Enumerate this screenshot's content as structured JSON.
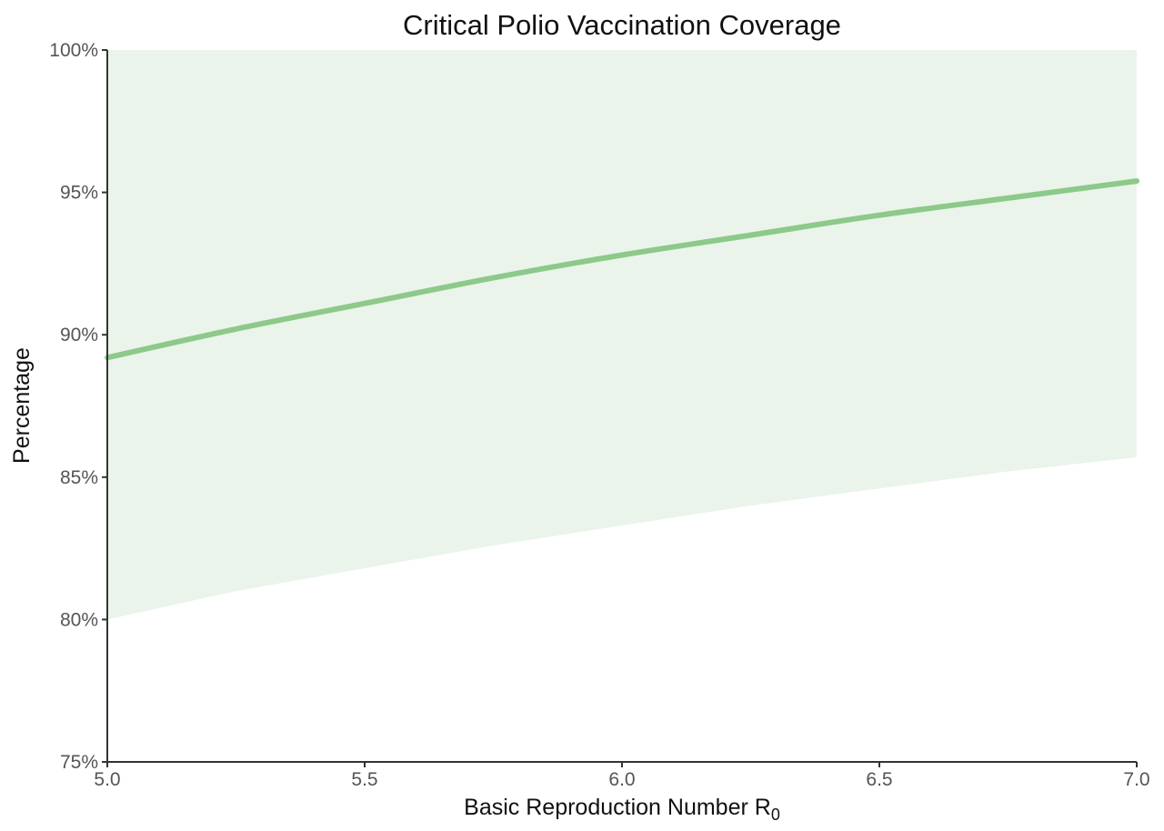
{
  "chart_data": {
    "type": "area",
    "title": "Critical Polio Vaccination Coverage",
    "xlabel": "Basic Reproduction Number R",
    "xlabel_subscript": "0",
    "ylabel": "Percentage",
    "xlim": [
      5.0,
      7.0
    ],
    "ylim": [
      75,
      100
    ],
    "x_ticks": [
      "5.0",
      "5.5",
      "6.0",
      "6.5",
      "7.0"
    ],
    "y_ticks": [
      "75%",
      "80%",
      "85%",
      "90%",
      "95%",
      "100%"
    ],
    "grid": false,
    "legend": "none",
    "x": [
      5.0,
      5.25,
      5.5,
      5.75,
      6.0,
      6.25,
      6.5,
      6.75,
      7.0
    ],
    "series": [
      {
        "type": "line",
        "values": [
          89.2,
          90.2,
          91.1,
          92.0,
          92.8,
          93.5,
          94.2,
          94.8,
          95.4
        ]
      },
      {
        "type": "band",
        "lower": [
          80.0,
          81.0,
          81.8,
          82.6,
          83.3,
          84.0,
          84.6,
          85.2,
          85.7
        ],
        "upper": [
          100,
          100,
          100,
          100,
          100,
          100,
          100,
          100,
          100
        ]
      }
    ],
    "colors": {
      "line": "#8dc98a",
      "band": "#eaf4ea",
      "axis": "#333333"
    }
  }
}
